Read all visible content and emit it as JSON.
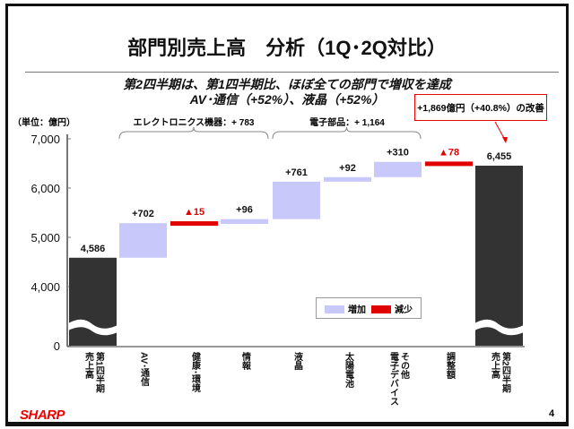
{
  "title": "部門別売上高　分析（1Q･2Q対比）",
  "subtitle_line1": "第2四半期は、第1四半期比、ほぼ全ての部門で増収を達成",
  "subtitle_line2": "AV･通信（+52%）、液晶（+52%）",
  "callout": "+1,869億円（+40.8%）の改善",
  "groups": [
    {
      "label": "エレクトロニクス機器：+ 783"
    },
    {
      "label": "電子部品：+ 1,164"
    }
  ],
  "legend": {
    "increase": "増加",
    "decrease": "減少"
  },
  "footer": {
    "logo": "SHARP",
    "page": "4"
  },
  "colors": {
    "total": "#333333",
    "increase": "#c8c8fa",
    "decrease": "#e00000"
  },
  "chart_data": {
    "type": "waterfall",
    "ylabel": "（単位：億円）",
    "yticks": [
      "7,000",
      "6,000",
      "5,000",
      "4,000",
      "0"
    ],
    "ylim": [
      0,
      7000
    ],
    "axis_break": [
      0,
      3500
    ],
    "categories": [
      "第1四半期\n売上高",
      "AV･通信",
      "健康･環境",
      "情報",
      "液晶",
      "太陽電池",
      "その他\n電子デバイス",
      "調整額",
      "第2四半期\n売上高"
    ],
    "kinds": [
      "total",
      "increase",
      "decrease",
      "increase",
      "increase",
      "increase",
      "increase",
      "decrease",
      "total"
    ],
    "values": [
      4586,
      702,
      -15,
      96,
      761,
      92,
      310,
      -78,
      6455
    ],
    "labels": [
      "4,586",
      "+702",
      "▲15",
      "+96",
      "+761",
      "+92",
      "+310",
      "▲78",
      "6,455"
    ]
  }
}
